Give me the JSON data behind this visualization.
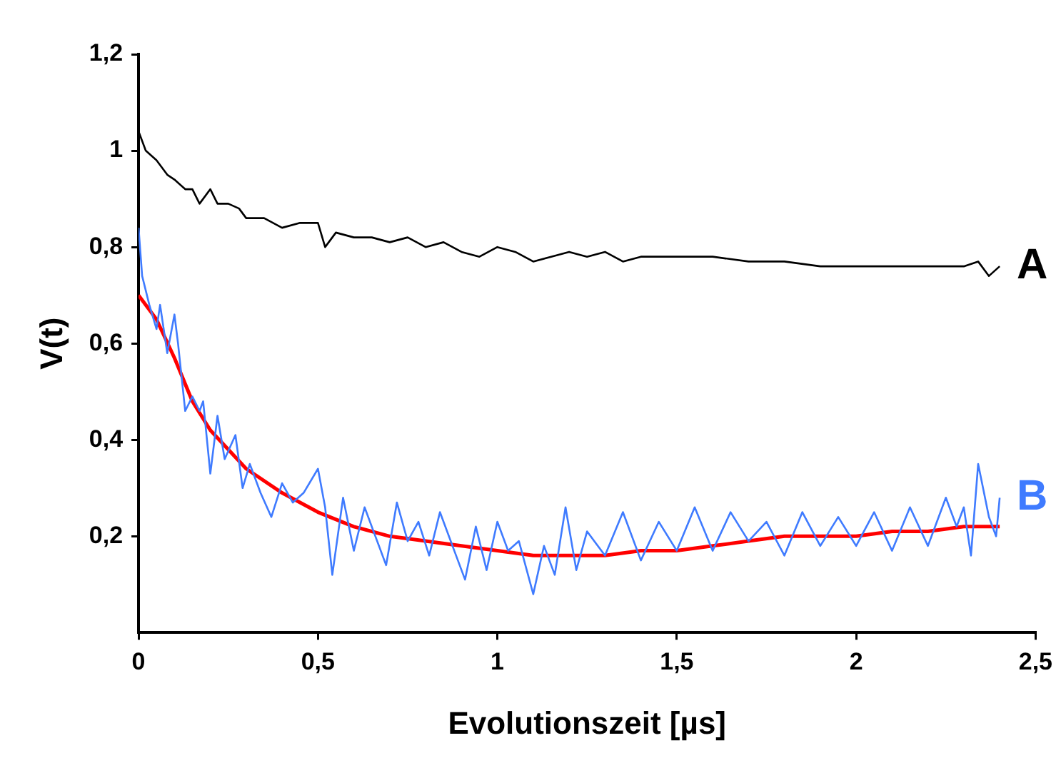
{
  "chart_data": {
    "type": "line",
    "xlabel": "Evolutionszeit [µs]",
    "ylabel": "V(t)",
    "xlim": [
      0,
      2.5
    ],
    "ylim": [
      0,
      1.2
    ],
    "xticks": [
      0,
      {
        "value": 0.5,
        "label": "0,5"
      },
      1,
      {
        "value": 1.5,
        "label": "1,5"
      },
      2,
      {
        "value": 2.5,
        "label": "2,5"
      }
    ],
    "yticks": [
      {
        "value": 0.2,
        "label": "0,2"
      },
      {
        "value": 0.4,
        "label": "0,4"
      },
      {
        "value": 0.6,
        "label": "0,6"
      },
      {
        "value": 0.8,
        "label": "0,8"
      },
      1,
      {
        "value": 1.2,
        "label": "1,2"
      }
    ],
    "grid": false,
    "legend": false,
    "marker": "none",
    "series": [
      {
        "name": "A",
        "color": "#000000",
        "x": [
          0,
          0.02,
          0.05,
          0.08,
          0.1,
          0.13,
          0.15,
          0.17,
          0.2,
          0.22,
          0.25,
          0.28,
          0.3,
          0.35,
          0.4,
          0.45,
          0.5,
          0.52,
          0.55,
          0.6,
          0.65,
          0.7,
          0.75,
          0.8,
          0.85,
          0.9,
          0.95,
          1,
          1.05,
          1.1,
          1.15,
          1.2,
          1.25,
          1.3,
          1.35,
          1.4,
          1.5,
          1.6,
          1.7,
          1.8,
          1.9,
          2,
          2.1,
          2.2,
          2.3,
          2.34,
          2.37,
          2.4
        ],
        "values": [
          1.04,
          1,
          0.98,
          0.95,
          0.94,
          0.92,
          0.92,
          0.89,
          0.92,
          0.89,
          0.89,
          0.88,
          0.86,
          0.86,
          0.84,
          0.85,
          0.85,
          0.8,
          0.83,
          0.82,
          0.82,
          0.81,
          0.82,
          0.8,
          0.81,
          0.79,
          0.78,
          0.8,
          0.79,
          0.77,
          0.78,
          0.79,
          0.78,
          0.79,
          0.77,
          0.78,
          0.78,
          0.78,
          0.77,
          0.77,
          0.76,
          0.76,
          0.76,
          0.76,
          0.76,
          0.77,
          0.74,
          0.76
        ]
      },
      {
        "name": "B",
        "color": "#3f7bff",
        "x": [
          0,
          0.01,
          0.03,
          0.05,
          0.06,
          0.08,
          0.1,
          0.11,
          0.13,
          0.15,
          0.17,
          0.18,
          0.2,
          0.22,
          0.24,
          0.27,
          0.29,
          0.31,
          0.34,
          0.37,
          0.4,
          0.43,
          0.46,
          0.5,
          0.52,
          0.54,
          0.57,
          0.6,
          0.63,
          0.66,
          0.69,
          0.72,
          0.75,
          0.78,
          0.81,
          0.84,
          0.88,
          0.91,
          0.94,
          0.97,
          1,
          1.03,
          1.06,
          1.1,
          1.13,
          1.16,
          1.19,
          1.22,
          1.25,
          1.3,
          1.35,
          1.4,
          1.45,
          1.5,
          1.55,
          1.6,
          1.65,
          1.7,
          1.75,
          1.8,
          1.85,
          1.9,
          1.95,
          2,
          2.05,
          2.1,
          2.15,
          2.2,
          2.25,
          2.28,
          2.3,
          2.32,
          2.34,
          2.37,
          2.39,
          2.4
        ],
        "values": [
          0.84,
          0.74,
          0.68,
          0.63,
          0.68,
          0.58,
          0.66,
          0.6,
          0.46,
          0.49,
          0.46,
          0.48,
          0.33,
          0.45,
          0.36,
          0.41,
          0.3,
          0.35,
          0.29,
          0.24,
          0.31,
          0.27,
          0.29,
          0.34,
          0.26,
          0.12,
          0.28,
          0.17,
          0.26,
          0.2,
          0.14,
          0.27,
          0.19,
          0.23,
          0.16,
          0.25,
          0.17,
          0.11,
          0.22,
          0.13,
          0.23,
          0.17,
          0.19,
          0.08,
          0.18,
          0.12,
          0.26,
          0.13,
          0.21,
          0.16,
          0.25,
          0.15,
          0.23,
          0.17,
          0.26,
          0.17,
          0.25,
          0.19,
          0.23,
          0.16,
          0.25,
          0.18,
          0.24,
          0.18,
          0.25,
          0.17,
          0.26,
          0.18,
          0.28,
          0.22,
          0.26,
          0.16,
          0.35,
          0.24,
          0.2,
          0.28
        ]
      },
      {
        "color": "#ff0000",
        "x": [
          0,
          0.05,
          0.1,
          0.15,
          0.2,
          0.3,
          0.4,
          0.5,
          0.6,
          0.7,
          0.8,
          0.9,
          1,
          1.1,
          1.2,
          1.3,
          1.4,
          1.5,
          1.6,
          1.7,
          1.8,
          1.9,
          2,
          2.1,
          2.2,
          2.3,
          2.4
        ],
        "values": [
          0.7,
          0.65,
          0.57,
          0.48,
          0.42,
          0.34,
          0.29,
          0.25,
          0.22,
          0.2,
          0.19,
          0.18,
          0.17,
          0.16,
          0.16,
          0.16,
          0.17,
          0.17,
          0.18,
          0.19,
          0.2,
          0.2,
          0.2,
          0.21,
          0.21,
          0.22,
          0.22
        ]
      }
    ]
  }
}
